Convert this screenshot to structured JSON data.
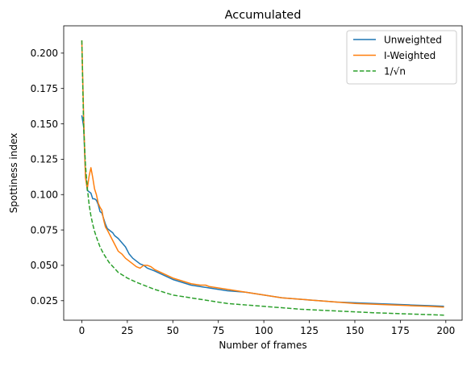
{
  "chart_data": {
    "type": "line",
    "title": "Accumulated",
    "xlabel": "Number of frames",
    "ylabel": "Spottiness index",
    "xlim": [
      -9.95,
      208.95
    ],
    "ylim": [
      0.0112,
      0.2193
    ],
    "xticks": [
      0,
      25,
      50,
      75,
      100,
      125,
      150,
      175,
      200
    ],
    "xtick_labels": [
      "0",
      "25",
      "50",
      "75",
      "100",
      "125",
      "150",
      "175",
      "200"
    ],
    "yticks": [
      0.025,
      0.05,
      0.075,
      0.1,
      0.125,
      0.15,
      0.175,
      0.2
    ],
    "ytick_labels": [
      "0.025",
      "0.050",
      "0.075",
      "0.100",
      "0.125",
      "0.150",
      "0.175",
      "0.200"
    ],
    "grid": false,
    "legend_position": "top-right",
    "series": [
      {
        "name": "Unweighted",
        "color": "#1f77b4",
        "style": "solid",
        "x": [
          0,
          1,
          2,
          3,
          4,
          5,
          6,
          7,
          8,
          9,
          10,
          11,
          12,
          13,
          14,
          15,
          16,
          17,
          18,
          19,
          20,
          22,
          24,
          26,
          28,
          30,
          32,
          34,
          36,
          38,
          40,
          45,
          50,
          55,
          60,
          65,
          70,
          75,
          80,
          90,
          100,
          110,
          120,
          130,
          140,
          150,
          160,
          170,
          180,
          190,
          199
        ],
        "y": [
          0.156,
          0.148,
          0.115,
          0.103,
          0.102,
          0.101,
          0.097,
          0.097,
          0.096,
          0.093,
          0.088,
          0.087,
          0.083,
          0.079,
          0.076,
          0.075,
          0.074,
          0.073,
          0.071,
          0.07,
          0.069,
          0.066,
          0.063,
          0.058,
          0.055,
          0.053,
          0.051,
          0.05,
          0.048,
          0.047,
          0.046,
          0.043,
          0.04,
          0.038,
          0.036,
          0.035,
          0.034,
          0.033,
          0.032,
          0.031,
          0.029,
          0.027,
          0.026,
          0.025,
          0.024,
          0.0235,
          0.023,
          0.0225,
          0.022,
          0.0215,
          0.021
        ]
      },
      {
        "name": "I-Weighted",
        "color": "#ff7f0e",
        "style": "solid",
        "x": [
          0,
          1,
          2,
          3,
          4,
          5,
          6,
          7,
          8,
          9,
          10,
          11,
          12,
          13,
          14,
          16,
          18,
          20,
          22,
          24,
          26,
          28,
          30,
          32,
          34,
          36,
          38,
          40,
          45,
          50,
          55,
          60,
          65,
          68,
          70,
          75,
          80,
          90,
          100,
          110,
          120,
          130,
          140,
          150,
          160,
          170,
          180,
          190,
          199
        ],
        "y": [
          0.209,
          0.155,
          0.112,
          0.104,
          0.113,
          0.119,
          0.112,
          0.104,
          0.1,
          0.094,
          0.091,
          0.089,
          0.082,
          0.077,
          0.075,
          0.07,
          0.065,
          0.06,
          0.058,
          0.055,
          0.053,
          0.051,
          0.049,
          0.048,
          0.05,
          0.05,
          0.049,
          0.047,
          0.044,
          0.041,
          0.039,
          0.037,
          0.036,
          0.036,
          0.035,
          0.034,
          0.033,
          0.031,
          0.029,
          0.027,
          0.026,
          0.025,
          0.024,
          0.023,
          0.0225,
          0.022,
          0.0215,
          0.021,
          0.0205
        ]
      },
      {
        "name": "1/√n",
        "color": "#2ca02c",
        "style": "dashed",
        "function": "1/sqrt(n)",
        "x": [
          0,
          1,
          2,
          3,
          4,
          5,
          6,
          7,
          8,
          10,
          12,
          15,
          20,
          25,
          30,
          40,
          50,
          60,
          70,
          80,
          100,
          120,
          140,
          160,
          180,
          199
        ],
        "y": [
          0.209,
          0.148,
          0.121,
          0.105,
          0.093,
          0.085,
          0.079,
          0.074,
          0.07,
          0.063,
          0.058,
          0.052,
          0.045,
          0.041,
          0.038,
          0.033,
          0.029,
          0.027,
          0.025,
          0.023,
          0.021,
          0.019,
          0.0177,
          0.0165,
          0.0156,
          0.0148
        ]
      }
    ]
  }
}
